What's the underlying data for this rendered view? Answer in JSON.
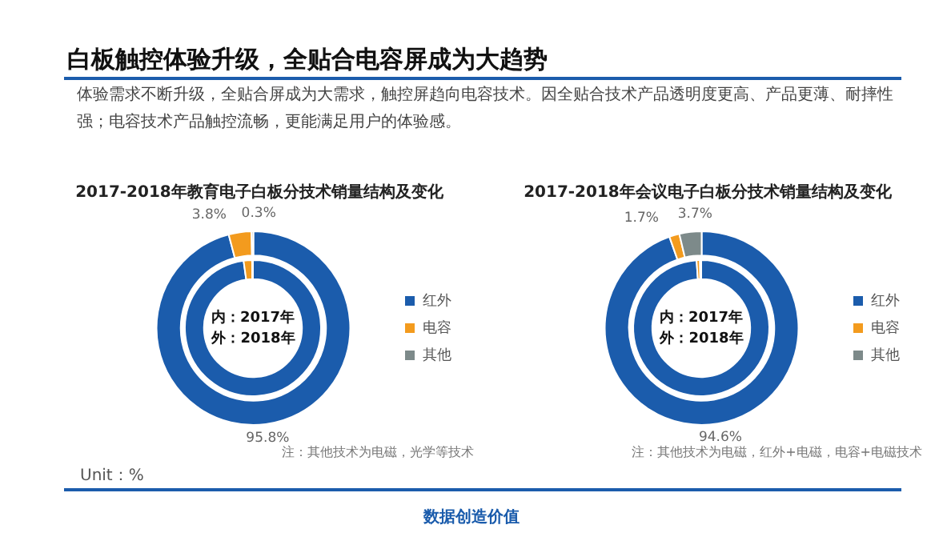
{
  "chart_data": [
    {
      "type": "other",
      "title": "白板触控体验升级，全贴合电容屏成为大趋势",
      "subtitle": "体验需求不断升级，全贴合屏成为大需求，触控屏趋向电容技术。因全贴合技术产品透明度更高、产品更薄、耐摔性强；电容技术产品触控流畅，更能满足用户的体验感。",
      "annotations": [
        "Unit：%",
        "数据创造价值"
      ]
    },
    {
      "type": "donut",
      "title": "2017-2018年教育电子白板分技术销量结构及变化",
      "categories": [
        "红外",
        "电容",
        "其他"
      ],
      "colors": [
        "#1b5cac",
        "#f39b1e",
        "#7d8a8a"
      ],
      "legend": "right",
      "series": [
        {
          "name": "外：2018年",
          "values": [
            95.8,
            3.8,
            0.3
          ],
          "value_labels": [
            "95.8%",
            "3.8%",
            "0.3%"
          ]
        }
      ],
      "annotations": [
        "注：其他技术为电磁，光学等技术"
      ]
    },
    {
      "type": "donut",
      "categories": [
        null,
        null,
        null
      ],
      "colors": [
        "#1b5cac",
        "#f39b1e",
        "#7d8a8a"
      ],
      "series": [
        {
          "name": "内：2017年",
          "values": [
            97.8,
            2.0,
            0.2
          ]
        }
      ]
    },
    {
      "type": "donut",
      "title": "2017-2018年会议电子白板分技术销量结构及变化",
      "categories": [
        "红外",
        "电容",
        "其他"
      ],
      "colors": [
        "#1b5cac",
        "#f39b1e",
        "#7d8a8a"
      ],
      "legend": "right",
      "series": [
        {
          "name": "外：2018年",
          "values": [
            94.6,
            1.7,
            3.7
          ],
          "value_labels": [
            "94.6%",
            "1.7%",
            "3.7%"
          ]
        }
      ],
      "annotations": [
        "注：其他技术为电磁，红外+电磁，电容+电磁技术"
      ]
    },
    {
      "type": "donut",
      "categories": [
        null,
        null,
        null
      ],
      "colors": [
        "#1b5cac",
        "#f39b1e",
        "#7d8a8a"
      ],
      "series": [
        {
          "name": "内：2017年",
          "values": [
            98.9,
            0.8,
            0.3
          ]
        }
      ]
    }
  ]
}
